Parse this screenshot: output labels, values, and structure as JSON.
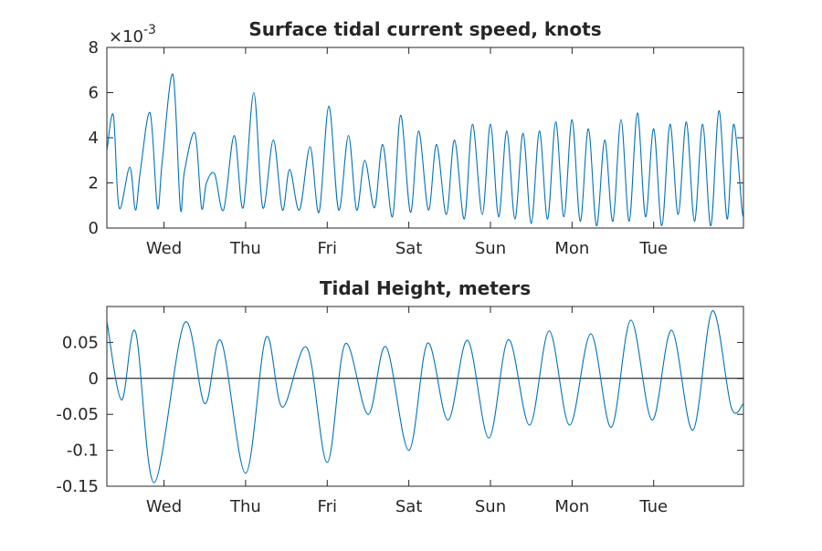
{
  "chart_data": [
    {
      "type": "line",
      "title": "Surface tidal current speed, knots",
      "exponent_label": "×10",
      "exponent_power": "-3",
      "xlabel": "",
      "ylabel": "",
      "y_scale_factor": 0.001,
      "xlim": [
        0,
        7.8
      ],
      "ylim": [
        0,
        8
      ],
      "y_ticks": [
        0,
        2,
        4,
        6,
        8
      ],
      "y_tick_labels": [
        "0",
        "2",
        "4",
        "6",
        "8"
      ],
      "x_ticks": [
        0.7,
        1.7,
        2.7,
        3.7,
        4.7,
        5.7,
        6.7
      ],
      "x_tick_labels": [
        "Wed",
        "Thu",
        "Fri",
        "Sat",
        "Sun",
        "Mon",
        "Tue"
      ],
      "grid": false,
      "color": "#0072bd",
      "series": [
        {
          "x": [
            0.0,
            0.08,
            0.15,
            0.28,
            0.35,
            0.41,
            0.53,
            0.62,
            0.68,
            0.81,
            0.9,
            0.95,
            1.08,
            1.16,
            1.22,
            1.32,
            1.43,
            1.56,
            1.67,
            1.8,
            1.91,
            2.04,
            2.15,
            2.24,
            2.36,
            2.49,
            2.6,
            2.72,
            2.84,
            2.96,
            3.06,
            3.16,
            3.28,
            3.38,
            3.5,
            3.6,
            3.72,
            3.82,
            3.94,
            4.04,
            4.16,
            4.26,
            4.38,
            4.48,
            4.6,
            4.7,
            4.8,
            4.9,
            5.0,
            5.1,
            5.2,
            5.3,
            5.4,
            5.5,
            5.6,
            5.7,
            5.8,
            5.9,
            6.0,
            6.1,
            6.2,
            6.3,
            6.4,
            6.5,
            6.6,
            6.7,
            6.8,
            6.9,
            7.0,
            7.1,
            7.2,
            7.3,
            7.4,
            7.5,
            7.6,
            7.68,
            7.78,
            7.8
          ],
          "y": [
            3.4,
            5.0,
            0.9,
            2.7,
            0.8,
            2.5,
            5.1,
            0.9,
            3.0,
            6.8,
            0.9,
            2.5,
            4.2,
            0.9,
            2.0,
            2.4,
            0.8,
            4.1,
            0.9,
            6.0,
            0.9,
            3.9,
            0.8,
            2.6,
            0.8,
            3.6,
            0.7,
            5.4,
            0.8,
            4.1,
            0.8,
            3.0,
            0.9,
            3.7,
            0.5,
            5.0,
            0.7,
            4.3,
            0.8,
            3.7,
            0.6,
            3.9,
            0.4,
            4.6,
            0.6,
            4.6,
            0.5,
            4.3,
            0.4,
            4.2,
            0.2,
            4.3,
            0.4,
            4.7,
            0.5,
            4.8,
            0.3,
            4.4,
            0.1,
            3.9,
            0.3,
            4.8,
            0.3,
            5.1,
            0.5,
            4.4,
            0.1,
            4.6,
            0.6,
            4.7,
            0.3,
            4.6,
            0.1,
            5.2,
            0.4,
            4.6,
            0.9,
            0.6
          ]
        }
      ]
    },
    {
      "type": "line",
      "title": "Tidal Height, meters",
      "xlabel": "",
      "ylabel": "",
      "xlim": [
        0,
        7.8
      ],
      "ylim": [
        -0.15,
        0.1
      ],
      "y_ticks": [
        -0.15,
        -0.1,
        -0.05,
        0,
        0.05
      ],
      "y_tick_labels": [
        "-0.15",
        "-0.1",
        "-0.05",
        "0",
        "0.05"
      ],
      "x_ticks": [
        0.7,
        1.7,
        2.7,
        3.7,
        4.7,
        5.7,
        6.7
      ],
      "x_tick_labels": [
        "Wed",
        "Thu",
        "Fri",
        "Sat",
        "Sun",
        "Mon",
        "Tue"
      ],
      "zero_line": true,
      "grid": false,
      "color": "#0072bd",
      "series": [
        {
          "x": [
            0.0,
            0.18,
            0.35,
            0.58,
            0.95,
            1.2,
            1.4,
            1.7,
            1.95,
            2.15,
            2.45,
            2.7,
            2.92,
            3.2,
            3.42,
            3.7,
            3.93,
            4.18,
            4.42,
            4.68,
            4.92,
            5.18,
            5.42,
            5.67,
            5.93,
            6.18,
            6.42,
            6.68,
            6.92,
            7.18,
            7.42,
            7.65,
            7.8
          ],
          "y": [
            0.08,
            -0.03,
            0.065,
            -0.145,
            0.077,
            -0.035,
            0.052,
            -0.132,
            0.057,
            -0.04,
            0.043,
            -0.117,
            0.048,
            -0.05,
            0.044,
            -0.1,
            0.049,
            -0.058,
            0.053,
            -0.083,
            0.054,
            -0.065,
            0.066,
            -0.065,
            0.062,
            -0.068,
            0.081,
            -0.058,
            0.067,
            -0.072,
            0.094,
            -0.04,
            -0.035
          ]
        }
      ]
    }
  ]
}
